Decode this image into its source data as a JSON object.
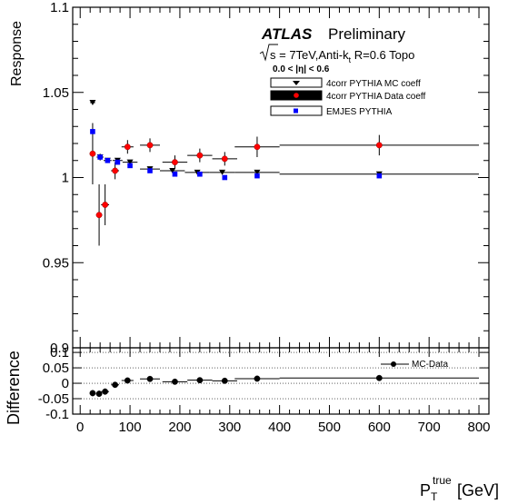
{
  "chart_data": [
    {
      "type": "scatter",
      "panel": "main",
      "ylabel": "Response",
      "xlim": [
        -15,
        820
      ],
      "ylim": [
        0.9,
        1.1
      ],
      "yticks": [
        "0.9",
        "0.95",
        "1",
        "1.05",
        "1.1"
      ],
      "grid": false,
      "legend_placement": "top-right",
      "annotation": {
        "atlas": "ATLAS",
        "preliminary": "Preliminary",
        "sqrt_s": "s",
        "energy_jets_pre": " = 7TeV,Anti-k",
        "energy_jets_sub": "t",
        "energy_jets_post": " R=0.6 Topo",
        "eta_range": "0.0 < |η| < 0.6"
      },
      "series": [
        {
          "name": "4corr PYTHIA MC coeff",
          "marker": "triangle-down",
          "color": "#000000",
          "points": [
            {
              "x": 25,
              "y": 1.044,
              "xerr": 5,
              "yerr": 0.0
            },
            {
              "x": 40,
              "y": 1.012,
              "xerr": 7,
              "yerr": 0.002
            },
            {
              "x": 55,
              "y": 1.01,
              "xerr": 8,
              "yerr": 0.001
            },
            {
              "x": 75,
              "y": 1.01,
              "xerr": 10,
              "yerr": 0.001
            },
            {
              "x": 100,
              "y": 1.009,
              "xerr": 15,
              "yerr": 0.001
            },
            {
              "x": 140,
              "y": 1.005,
              "xerr": 20,
              "yerr": 0.001
            },
            {
              "x": 185,
              "y": 1.004,
              "xerr": 25,
              "yerr": 0.001
            },
            {
              "x": 235,
              "y": 1.003,
              "xerr": 25,
              "yerr": 0.001
            },
            {
              "x": 285,
              "y": 1.003,
              "xerr": 25,
              "yerr": 0.001
            },
            {
              "x": 355,
              "y": 1.003,
              "xerr": 45,
              "yerr": 0.001
            },
            {
              "x": 600,
              "y": 1.002,
              "xerr": 200,
              "yerr": 0.001
            }
          ]
        },
        {
          "name": "4corr PYTHIA Data coeff",
          "marker": "circle",
          "color": "#ff0000",
          "points": [
            {
              "x": 25,
              "y": 1.014,
              "xerr": 5,
              "yerr": 0.018
            },
            {
              "x": 38,
              "y": 0.978,
              "xerr": 6,
              "yerr": 0.018
            },
            {
              "x": 50,
              "y": 0.984,
              "xerr": 8,
              "yerr": 0.012
            },
            {
              "x": 70,
              "y": 1.004,
              "xerr": 8,
              "yerr": 0.005
            },
            {
              "x": 95,
              "y": 1.018,
              "xerr": 12,
              "yerr": 0.004
            },
            {
              "x": 140,
              "y": 1.019,
              "xerr": 20,
              "yerr": 0.004
            },
            {
              "x": 190,
              "y": 1.009,
              "xerr": 25,
              "yerr": 0.004
            },
            {
              "x": 240,
              "y": 1.013,
              "xerr": 25,
              "yerr": 0.004
            },
            {
              "x": 290,
              "y": 1.011,
              "xerr": 25,
              "yerr": 0.004
            },
            {
              "x": 355,
              "y": 1.018,
              "xerr": 45,
              "yerr": 0.006
            },
            {
              "x": 600,
              "y": 1.019,
              "xerr": 200,
              "yerr": 0.006
            }
          ]
        },
        {
          "name": "EMJES PYTHIA",
          "marker": "square",
          "color": "#0000ff",
          "points": [
            {
              "x": 25,
              "y": 1.027,
              "xerr": 0,
              "yerr": 0
            },
            {
              "x": 40,
              "y": 1.012,
              "xerr": 0,
              "yerr": 0
            },
            {
              "x": 55,
              "y": 1.01,
              "xerr": 0,
              "yerr": 0
            },
            {
              "x": 75,
              "y": 1.009,
              "xerr": 0,
              "yerr": 0
            },
            {
              "x": 100,
              "y": 1.007,
              "xerr": 0,
              "yerr": 0
            },
            {
              "x": 140,
              "y": 1.004,
              "xerr": 0,
              "yerr": 0
            },
            {
              "x": 190,
              "y": 1.002,
              "xerr": 0,
              "yerr": 0
            },
            {
              "x": 240,
              "y": 1.002,
              "xerr": 0,
              "yerr": 0
            },
            {
              "x": 290,
              "y": 1.0,
              "xerr": 0,
              "yerr": 0
            },
            {
              "x": 355,
              "y": 1.001,
              "xerr": 0,
              "yerr": 0
            },
            {
              "x": 600,
              "y": 1.001,
              "xerr": 0,
              "yerr": 0
            }
          ]
        }
      ]
    },
    {
      "type": "scatter",
      "panel": "ratio",
      "ylabel": "Difference",
      "xlabel_main": "P",
      "xlabel_sub": "T",
      "xlabel_sup": "true",
      "xlabel_unit": "[GeV]",
      "xlim": [
        -15,
        820
      ],
      "ylim": [
        -0.1,
        0.115
      ],
      "yticks": [
        "-0.1",
        "-0.05",
        "0",
        "0.05",
        "0.1"
      ],
      "xticks": [
        "0",
        "100",
        "200",
        "300",
        "400",
        "500",
        "600",
        "700",
        "800"
      ],
      "grid": "horizontal-dotted",
      "legend_placement": "top-right",
      "series": [
        {
          "name": "MC-Data",
          "marker": "circle",
          "color": "#000000",
          "points": [
            {
              "x": 25,
              "y": -0.032,
              "xerr": 5,
              "yerr": 0.01
            },
            {
              "x": 38,
              "y": -0.034,
              "xerr": 6,
              "yerr": 0.01
            },
            {
              "x": 50,
              "y": -0.027,
              "xerr": 8,
              "yerr": 0.01
            },
            {
              "x": 70,
              "y": -0.005,
              "xerr": 8,
              "yerr": 0.005
            },
            {
              "x": 95,
              "y": 0.009,
              "xerr": 12,
              "yerr": 0.004
            },
            {
              "x": 140,
              "y": 0.014,
              "xerr": 20,
              "yerr": 0.004
            },
            {
              "x": 190,
              "y": 0.005,
              "xerr": 25,
              "yerr": 0.004
            },
            {
              "x": 240,
              "y": 0.01,
              "xerr": 25,
              "yerr": 0.004
            },
            {
              "x": 290,
              "y": 0.008,
              "xerr": 25,
              "yerr": 0.004
            },
            {
              "x": 355,
              "y": 0.015,
              "xerr": 45,
              "yerr": 0.005
            },
            {
              "x": 600,
              "y": 0.017,
              "xerr": 200,
              "yerr": 0.005
            }
          ]
        }
      ]
    }
  ]
}
